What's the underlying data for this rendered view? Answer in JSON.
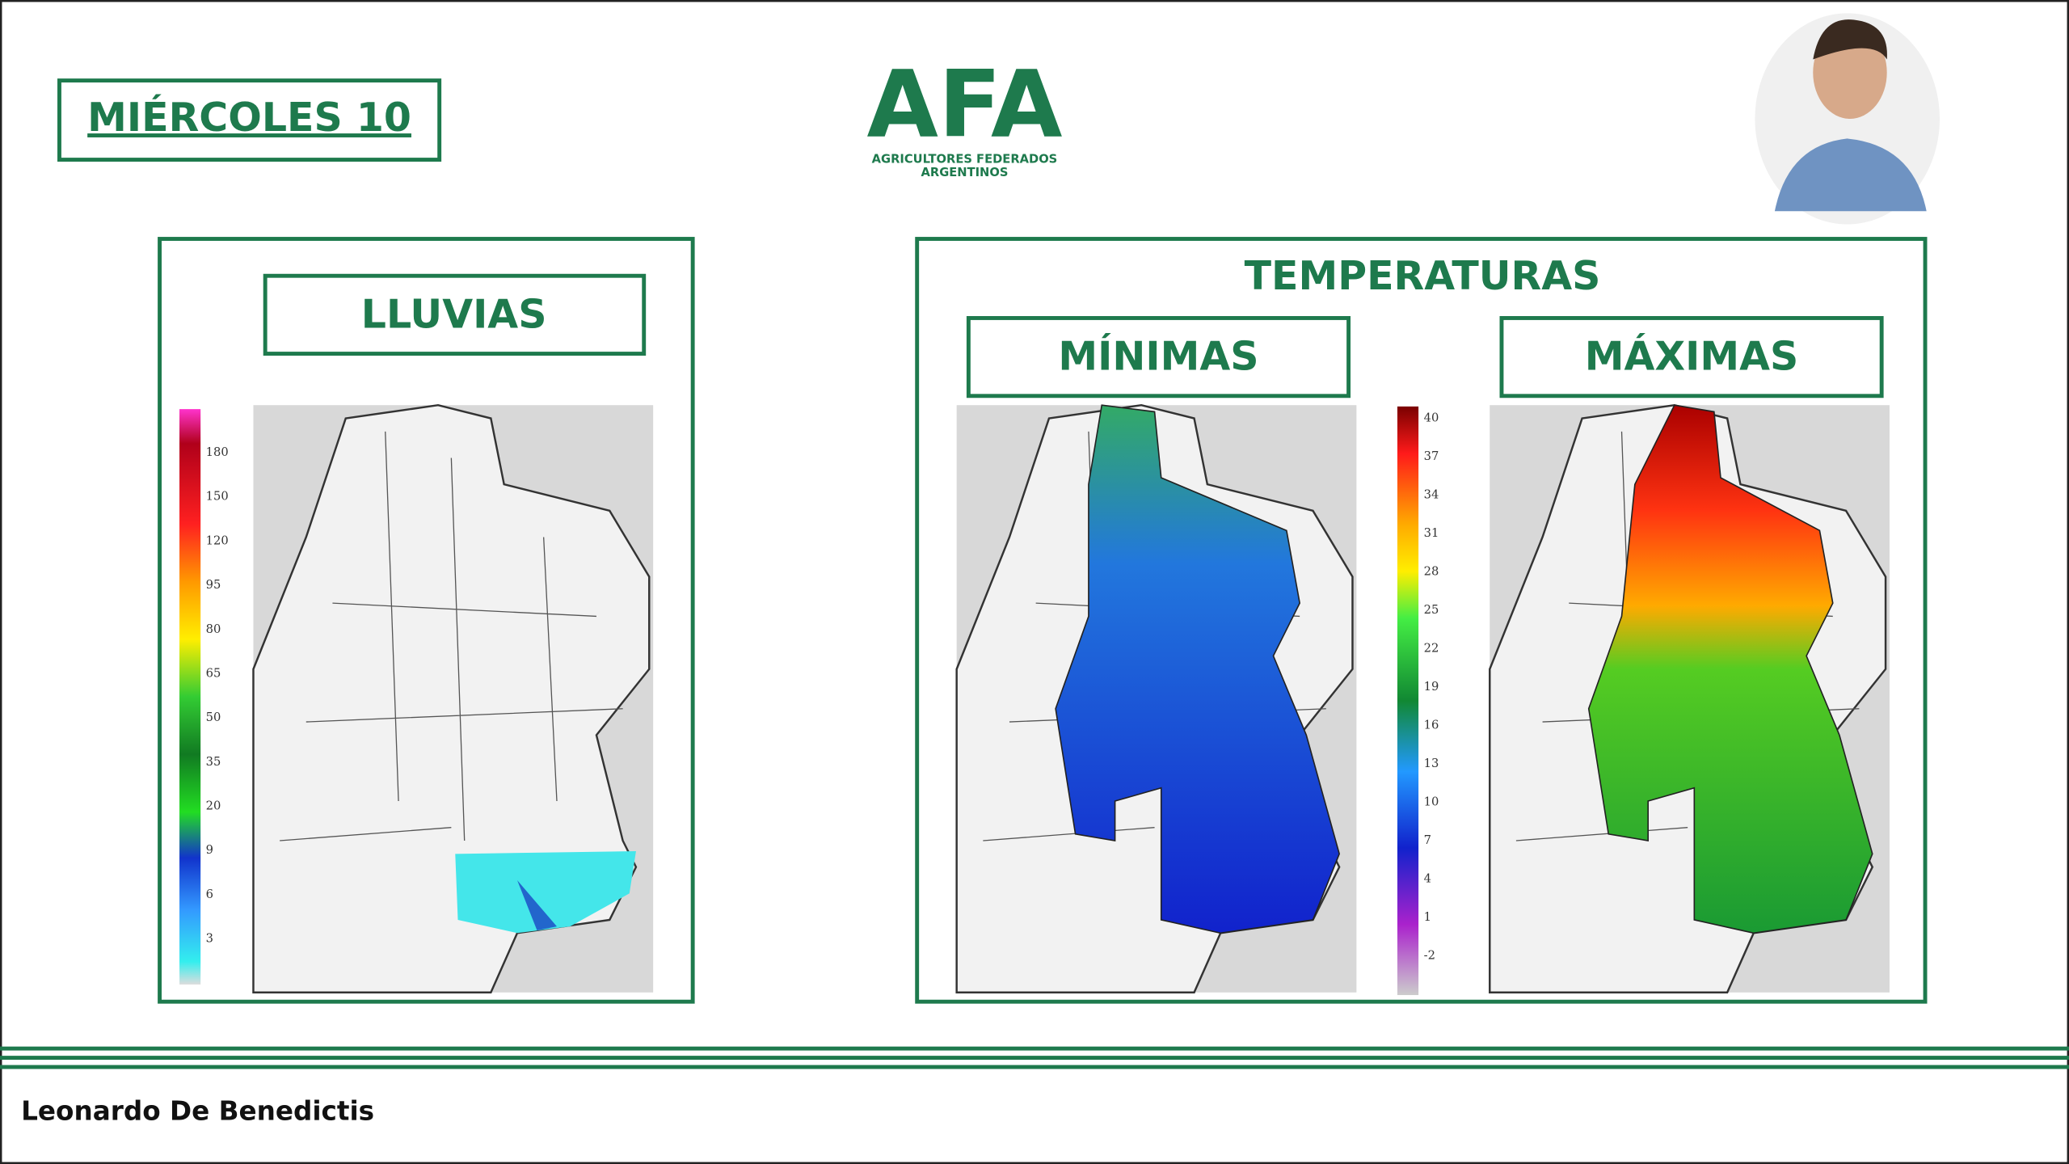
{
  "header": {
    "day": "MIÉRCOLES 10",
    "logo": "AFA",
    "logo_subtitle_1": "AGRICULTORES FEDERADOS",
    "logo_subtitle_2": "ARGENTINOS"
  },
  "rain_panel": {
    "title": "LLUVIAS",
    "legend": [
      180,
      150,
      120,
      95,
      80,
      65,
      50,
      35,
      20,
      9,
      6,
      3
    ]
  },
  "temp_panel": {
    "title": "TEMPERATURAS",
    "min_title": "MÍNIMAS",
    "max_title": "MÁXIMAS",
    "legend": [
      40,
      37,
      34,
      31,
      28,
      25,
      22,
      19,
      16,
      13,
      10,
      7,
      4,
      1,
      -2
    ]
  },
  "footer": {
    "presenter": "Leonardo De Benedictis"
  }
}
